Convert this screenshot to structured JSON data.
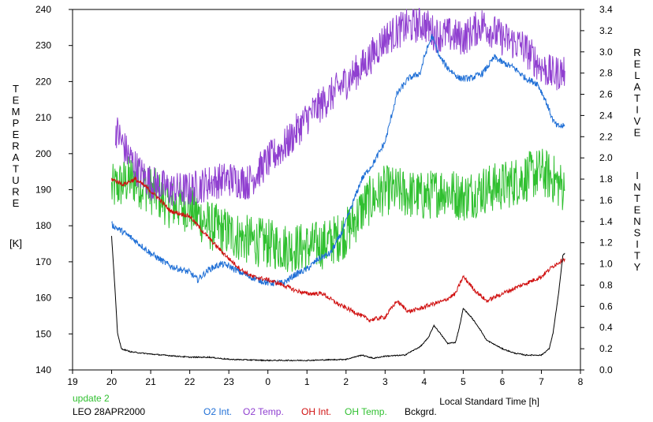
{
  "footer": {
    "update_label": "update 2",
    "station_date": "LEO 28APR2000"
  },
  "chart_data": {
    "type": "line",
    "xlabel": "Local Standard Time [h]",
    "ylabel_left": "TEMPERATURE [K]",
    "ylabel_left_letters": [
      "T",
      "E",
      "M",
      "P",
      "E",
      "R",
      "A",
      "T",
      "U",
      "R",
      "E"
    ],
    "ylabel_left_unit": "[K]",
    "ylabel_right": "RELATIVE INTENSITY",
    "ylabel_right_word1": [
      "R",
      "E",
      "L",
      "A",
      "T",
      "I",
      "V",
      "E"
    ],
    "ylabel_right_word2": [
      "I",
      "N",
      "T",
      "E",
      "N",
      "S",
      "I",
      "T",
      "Y"
    ],
    "x_ticks": [
      "19",
      "20",
      "21",
      "22",
      "23",
      "0",
      "1",
      "2",
      "3",
      "4",
      "5",
      "6",
      "7",
      "8"
    ],
    "y_left_ticks": [
      "140",
      "150",
      "160",
      "170",
      "180",
      "190",
      "200",
      "210",
      "220",
      "230",
      "240"
    ],
    "y_right_ticks": [
      "0.0",
      "0.2",
      "0.4",
      "0.6",
      "0.8",
      "1.0",
      "1.2",
      "1.4",
      "1.6",
      "1.8",
      "2.0",
      "2.2",
      "2.4",
      "2.6",
      "2.8",
      "3.0",
      "3.2",
      "3.4"
    ],
    "xlim": [
      19,
      32
    ],
    "ylim_left": [
      140,
      240
    ],
    "ylim_right": [
      0,
      3.4
    ],
    "grid": false,
    "legend_position": "bottom",
    "series": [
      {
        "name": "O2 Int.",
        "axis": "right",
        "color": "#1f6fd6",
        "noise": 0.03,
        "points": [
          [
            20.0,
            1.37
          ],
          [
            20.3,
            1.3
          ],
          [
            20.6,
            1.22
          ],
          [
            21.0,
            1.1
          ],
          [
            21.5,
            0.98
          ],
          [
            22.0,
            0.92
          ],
          [
            22.2,
            0.85
          ],
          [
            22.5,
            0.95
          ],
          [
            22.8,
            1.0
          ],
          [
            23.0,
            0.98
          ],
          [
            23.3,
            0.92
          ],
          [
            23.6,
            0.87
          ],
          [
            24.0,
            0.82
          ],
          [
            24.4,
            0.82
          ],
          [
            24.7,
            0.9
          ],
          [
            25.0,
            0.95
          ],
          [
            25.3,
            1.05
          ],
          [
            25.6,
            1.1
          ],
          [
            25.9,
            1.3
          ],
          [
            26.2,
            1.6
          ],
          [
            26.4,
            1.8
          ],
          [
            26.7,
            1.95
          ],
          [
            27.0,
            2.15
          ],
          [
            27.3,
            2.6
          ],
          [
            27.6,
            2.75
          ],
          [
            27.9,
            2.8
          ],
          [
            28.0,
            2.95
          ],
          [
            28.2,
            3.15
          ],
          [
            28.4,
            2.95
          ],
          [
            28.6,
            2.85
          ],
          [
            28.9,
            2.75
          ],
          [
            29.2,
            2.75
          ],
          [
            29.5,
            2.8
          ],
          [
            29.8,
            2.95
          ],
          [
            30.0,
            2.9
          ],
          [
            30.3,
            2.85
          ],
          [
            30.6,
            2.75
          ],
          [
            30.9,
            2.7
          ],
          [
            31.1,
            2.55
          ],
          [
            31.3,
            2.35
          ],
          [
            31.4,
            2.3
          ],
          [
            31.6,
            2.3
          ]
        ]
      },
      {
        "name": "O2 Temp.",
        "axis": "left",
        "color": "#9040d0",
        "noise": 5,
        "points": [
          [
            20.1,
            207
          ],
          [
            20.4,
            200
          ],
          [
            20.7,
            195
          ],
          [
            21.0,
            192
          ],
          [
            21.5,
            190
          ],
          [
            22.0,
            190
          ],
          [
            22.5,
            192
          ],
          [
            23.0,
            193
          ],
          [
            23.5,
            192
          ],
          [
            24.0,
            198
          ],
          [
            24.5,
            203
          ],
          [
            25.0,
            210
          ],
          [
            25.5,
            215
          ],
          [
            26.0,
            220
          ],
          [
            26.5,
            225
          ],
          [
            27.0,
            232
          ],
          [
            27.5,
            235
          ],
          [
            28.0,
            236
          ],
          [
            28.3,
            233
          ],
          [
            28.6,
            233
          ],
          [
            29.0,
            232
          ],
          [
            29.5,
            236
          ],
          [
            30.0,
            232
          ],
          [
            30.5,
            230
          ],
          [
            31.0,
            224
          ],
          [
            31.3,
            222
          ],
          [
            31.6,
            223
          ]
        ]
      },
      {
        "name": "OH Int.",
        "axis": "right",
        "color": "#d01010",
        "noise": 0.02,
        "points": [
          [
            20.0,
            1.8
          ],
          [
            20.3,
            1.75
          ],
          [
            20.6,
            1.8
          ],
          [
            20.9,
            1.72
          ],
          [
            21.2,
            1.62
          ],
          [
            21.5,
            1.5
          ],
          [
            22.0,
            1.45
          ],
          [
            22.3,
            1.32
          ],
          [
            22.6,
            1.2
          ],
          [
            23.0,
            1.05
          ],
          [
            23.3,
            0.95
          ],
          [
            23.6,
            0.88
          ],
          [
            24.0,
            0.85
          ],
          [
            24.4,
            0.8
          ],
          [
            24.7,
            0.75
          ],
          [
            25.0,
            0.72
          ],
          [
            25.4,
            0.72
          ],
          [
            25.8,
            0.62
          ],
          [
            26.2,
            0.55
          ],
          [
            26.6,
            0.47
          ],
          [
            27.0,
            0.5
          ],
          [
            27.3,
            0.65
          ],
          [
            27.6,
            0.55
          ],
          [
            27.9,
            0.58
          ],
          [
            28.2,
            0.62
          ],
          [
            28.5,
            0.65
          ],
          [
            28.8,
            0.72
          ],
          [
            29.0,
            0.88
          ],
          [
            29.3,
            0.75
          ],
          [
            29.6,
            0.65
          ],
          [
            30.0,
            0.72
          ],
          [
            30.5,
            0.8
          ],
          [
            31.0,
            0.88
          ],
          [
            31.3,
            0.98
          ],
          [
            31.6,
            1.05
          ]
        ]
      },
      {
        "name": "OH Temp.",
        "axis": "left",
        "color": "#30c030",
        "noise": 7,
        "points": [
          [
            20.0,
            190
          ],
          [
            20.5,
            193
          ],
          [
            21.0,
            190
          ],
          [
            21.5,
            186
          ],
          [
            22.0,
            185
          ],
          [
            22.5,
            180
          ],
          [
            23.0,
            178
          ],
          [
            23.5,
            176
          ],
          [
            24.0,
            175
          ],
          [
            24.5,
            174
          ],
          [
            25.0,
            174
          ],
          [
            25.5,
            175
          ],
          [
            26.0,
            178
          ],
          [
            26.5,
            186
          ],
          [
            27.0,
            190
          ],
          [
            27.5,
            189
          ],
          [
            28.0,
            188
          ],
          [
            28.5,
            190
          ],
          [
            29.0,
            188
          ],
          [
            29.5,
            190
          ],
          [
            30.0,
            191
          ],
          [
            30.5,
            193
          ],
          [
            31.0,
            195
          ],
          [
            31.3,
            193
          ],
          [
            31.6,
            190
          ]
        ]
      },
      {
        "name": "Bckgrd.",
        "axis": "right",
        "color": "#000000",
        "noise": 0.005,
        "points": [
          [
            20.0,
            1.26
          ],
          [
            20.08,
            0.8
          ],
          [
            20.15,
            0.35
          ],
          [
            20.25,
            0.2
          ],
          [
            20.5,
            0.17
          ],
          [
            21.0,
            0.15
          ],
          [
            22.0,
            0.12
          ],
          [
            22.5,
            0.12
          ],
          [
            23.0,
            0.1
          ],
          [
            24.0,
            0.09
          ],
          [
            25.0,
            0.09
          ],
          [
            26.0,
            0.1
          ],
          [
            26.4,
            0.14
          ],
          [
            26.7,
            0.11
          ],
          [
            27.0,
            0.13
          ],
          [
            27.5,
            0.14
          ],
          [
            27.9,
            0.22
          ],
          [
            28.1,
            0.3
          ],
          [
            28.25,
            0.42
          ],
          [
            28.4,
            0.35
          ],
          [
            28.6,
            0.25
          ],
          [
            28.8,
            0.26
          ],
          [
            28.9,
            0.4
          ],
          [
            29.0,
            0.58
          ],
          [
            29.2,
            0.5
          ],
          [
            29.4,
            0.4
          ],
          [
            29.6,
            0.28
          ],
          [
            30.0,
            0.2
          ],
          [
            30.3,
            0.16
          ],
          [
            30.6,
            0.14
          ],
          [
            31.0,
            0.14
          ],
          [
            31.2,
            0.2
          ],
          [
            31.3,
            0.35
          ],
          [
            31.45,
            0.75
          ],
          [
            31.55,
            1.08
          ],
          [
            31.6,
            1.1
          ]
        ]
      }
    ]
  }
}
